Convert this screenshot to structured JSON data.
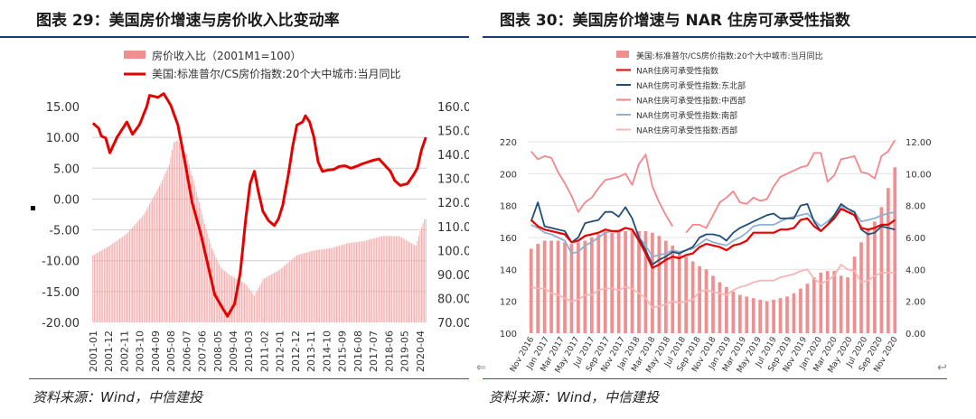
{
  "left": {
    "title": "图表 29：美国房价增速与房价收入比变动率",
    "source": "资料来源：Wind，中信建投",
    "chart_data": {
      "type": "bar+line",
      "legend": [
        {
          "name": "房价收入比（2001M1=100）",
          "color": "#f08f8f"
        },
        {
          "name": "美国:标准普尔/CS房价指数:20个大中城市:当月同比",
          "color": "#e60000"
        }
      ],
      "left_ticks": [
        "15.00",
        "10.00",
        "5.00",
        "0.00",
        "-5.00",
        "-10.00",
        "-15.00",
        "-20.00"
      ],
      "right_ticks": [
        "160.00",
        "150.00",
        "140.00",
        "130.00",
        "120.00",
        "110.00",
        "100.00",
        "90.00",
        "80.00",
        "70.00"
      ],
      "x_ticks": [
        "2001-01",
        "2001-12",
        "2002-11",
        "2003-10",
        "2004-09",
        "2005-08",
        "2006-07",
        "2007-06",
        "2008-05",
        "2009-04",
        "2010-03",
        "2011-02",
        "2012-01",
        "2012-12",
        "2013-11",
        "2014-10",
        "2015-09",
        "2016-08",
        "2017-07",
        "2018-06",
        "2019-05",
        "2020-04"
      ],
      "ylim_left": [
        -20,
        15
      ],
      "ylim_right": [
        70,
        160
      ],
      "ratio_anchors": [
        [
          0,
          98
        ],
        [
          12,
          102
        ],
        [
          24,
          107
        ],
        [
          36,
          115
        ],
        [
          48,
          128
        ],
        [
          54,
          136
        ],
        [
          57,
          145
        ],
        [
          60,
          146
        ],
        [
          66,
          140
        ],
        [
          72,
          127
        ],
        [
          78,
          113
        ],
        [
          84,
          101
        ],
        [
          90,
          93
        ],
        [
          96,
          90
        ],
        [
          108,
          86
        ],
        [
          114,
          81
        ],
        [
          120,
          88
        ],
        [
          132,
          92
        ],
        [
          144,
          98
        ],
        [
          156,
          100
        ],
        [
          168,
          101
        ],
        [
          180,
          103
        ],
        [
          192,
          104
        ],
        [
          204,
          106
        ],
        [
          216,
          106
        ],
        [
          222,
          104
        ],
        [
          228,
          102
        ],
        [
          231,
          108
        ],
        [
          234,
          113
        ]
      ],
      "yoy_anchors": [
        [
          0,
          12.3
        ],
        [
          4,
          11.5
        ],
        [
          6,
          10.2
        ],
        [
          9,
          9.9
        ],
        [
          12,
          7.5
        ],
        [
          17,
          10.0
        ],
        [
          24,
          12.5
        ],
        [
          28,
          10.5
        ],
        [
          33,
          12.1
        ],
        [
          38,
          15.0
        ],
        [
          40,
          16.8
        ],
        [
          46,
          16.5
        ],
        [
          50,
          17.1
        ],
        [
          55,
          15.2
        ],
        [
          60,
          12.0
        ],
        [
          65,
          6.0
        ],
        [
          70,
          -0.5
        ],
        [
          76,
          -5.5
        ],
        [
          81,
          -10.5
        ],
        [
          86,
          -15.5
        ],
        [
          91,
          -17.5
        ],
        [
          95,
          -19.0
        ],
        [
          100,
          -17.0
        ],
        [
          104,
          -12.0
        ],
        [
          108,
          -3.0
        ],
        [
          111,
          2.5
        ],
        [
          114,
          4.5
        ],
        [
          117,
          1.0
        ],
        [
          120,
          -2.0
        ],
        [
          124,
          -3.5
        ],
        [
          128,
          -4.3
        ],
        [
          131,
          -3.2
        ],
        [
          134,
          -1.0
        ],
        [
          138,
          4.0
        ],
        [
          141,
          8.5
        ],
        [
          144,
          12.0
        ],
        [
          148,
          12.5
        ],
        [
          150,
          13.5
        ],
        [
          153,
          12.5
        ],
        [
          156,
          10.0
        ],
        [
          159,
          6.0
        ],
        [
          162,
          4.5
        ],
        [
          166,
          4.7
        ],
        [
          170,
          4.8
        ],
        [
          174,
          5.3
        ],
        [
          178,
          5.4
        ],
        [
          182,
          5.0
        ],
        [
          186,
          5.3
        ],
        [
          190,
          5.7
        ],
        [
          194,
          6.0
        ],
        [
          198,
          6.3
        ],
        [
          202,
          6.5
        ],
        [
          206,
          5.5
        ],
        [
          210,
          4.5
        ],
        [
          213,
          3.0
        ],
        [
          217,
          2.2
        ],
        [
          222,
          2.5
        ],
        [
          226,
          3.8
        ],
        [
          229,
          5.0
        ],
        [
          232,
          8.0
        ],
        [
          235,
          10.0
        ]
      ]
    }
  },
  "right": {
    "title": "图表 30：美国房价增速与 NAR 住房可承受性指数",
    "source": "资料来源：Wind，中信建投",
    "chart_data": {
      "type": "bar+line",
      "legend": [
        {
          "name": "美国:标准普尔/CS房价指数:20个大中城市:当月同比",
          "color": "#f08f8f",
          "kind": "bar"
        },
        {
          "name": "NAR住房可承受性指数",
          "color": "#e60000",
          "kind": "line"
        },
        {
          "name": "NAR住房可承受性指数:东北部",
          "color": "#1f4e79",
          "kind": "line"
        },
        {
          "name": "NAR住房可承受性指数:中西部",
          "color": "#f4878a",
          "kind": "line"
        },
        {
          "name": "NAR住房可承受性指数:南部",
          "color": "#8fb0d0",
          "kind": "line"
        },
        {
          "name": "NAR住房可承受性指数:西部",
          "color": "#f7b6b6",
          "kind": "line"
        }
      ],
      "left_ticks": [
        "220",
        "200",
        "180",
        "160",
        "140",
        "120",
        "100"
      ],
      "right_ticks": [
        "12.00",
        "10.00",
        "8.00",
        "6.00",
        "4.00",
        "2.00",
        "0.00"
      ],
      "ylim_left": [
        100,
        220
      ],
      "ylim_right": [
        0,
        12
      ],
      "x_ticks": [
        "Nov 2016",
        "Jan 2017",
        "Mar 2017",
        "May 2017",
        "Jul 2017",
        "Sep 2017",
        "Nov 2017",
        "Jan 2018",
        "Mar 2018",
        "May 2018",
        "Jul 2018",
        "Sep 2018",
        "Nov 2018",
        "Jan 2019",
        "Mar 2019",
        "May 2019",
        "Jul 2019",
        "Sep 2019",
        "Nov 2019",
        "Jan 2020",
        "Mar 2020",
        "May 2020",
        "Jul 2020",
        "Sep 2020",
        "Nov 2020"
      ],
      "bars": [
        5.3,
        5.6,
        5.8,
        5.8,
        5.8,
        5.7,
        5.6,
        5.7,
        5.8,
        6.0,
        6.2,
        6.4,
        6.3,
        6.3,
        6.4,
        6.4,
        6.4,
        6.4,
        6.3,
        6.1,
        5.8,
        5.5,
        5.1,
        4.8,
        4.5,
        4.2,
        4.0,
        3.6,
        3.2,
        2.9,
        2.6,
        2.4,
        2.3,
        2.2,
        2.1,
        2.0,
        2.1,
        2.2,
        2.3,
        2.5,
        2.8,
        3.1,
        3.5,
        3.8,
        3.9,
        3.9,
        3.6,
        3.5,
        4.8,
        5.7,
        6.5,
        7.0,
        7.9,
        9.1,
        10.4
      ],
      "nar": [
        171,
        167,
        165,
        164,
        163,
        162,
        157,
        158,
        161,
        162,
        163,
        165,
        164,
        164,
        166,
        165,
        158,
        150,
        141,
        143,
        146,
        148,
        147,
        149,
        150,
        154,
        156,
        155,
        154,
        152,
        155,
        156,
        158,
        163,
        163,
        163,
        163,
        165,
        165,
        166,
        171,
        172,
        167,
        164,
        168,
        172,
        178,
        176,
        174,
        166,
        165,
        166,
        168,
        168,
        171
      ],
      "northeast": [
        170,
        182,
        167,
        166,
        165,
        164,
        157,
        160,
        169,
        170,
        171,
        176,
        176,
        173,
        179,
        172,
        160,
        152,
        143,
        146,
        148,
        151,
        150,
        152,
        154,
        160,
        162,
        162,
        161,
        158,
        163,
        166,
        168,
        170,
        172,
        174,
        175,
        172,
        172,
        172,
        180,
        181,
        170,
        164,
        168,
        174,
        181,
        178,
        176,
        165,
        162,
        163,
        167,
        166,
        165
      ],
      "midwest": [
        214,
        209,
        211,
        210,
        201,
        194,
        186,
        176,
        182,
        185,
        191,
        196,
        197,
        198,
        200,
        193,
        206,
        212,
        192,
        182,
        174,
        167,
        null,
        163,
        168,
        168,
        166,
        174,
        182,
        185,
        189,
        182,
        181,
        185,
        183,
        184,
        192,
        198,
        200,
        202,
        204,
        205,
        213,
        213,
        195,
        199,
        209,
        210,
        211,
        201,
        200,
        197,
        211,
        214,
        221
      ],
      "south": [
        168,
        166,
        163,
        162,
        160,
        158,
        150,
        151,
        155,
        157,
        160,
        163,
        164,
        163,
        166,
        165,
        160,
        155,
        148,
        149,
        150,
        152,
        151,
        152,
        153,
        156,
        159,
        157,
        156,
        155,
        158,
        160,
        163,
        167,
        168,
        168,
        168,
        170,
        172,
        173,
        174,
        175,
        171,
        167,
        170,
        174,
        180,
        176,
        176,
        170,
        171,
        172,
        174,
        175,
        176
      ],
      "west": [
        129,
        128,
        128,
        125,
        124,
        122,
        120,
        121,
        124,
        124,
        127,
        128,
        128,
        127,
        129,
        128,
        125,
        122,
        116,
        117,
        118,
        120,
        119,
        120,
        121,
        126,
        127,
        126,
        125,
        124,
        127,
        129,
        130,
        132,
        133,
        133,
        133,
        135,
        136,
        137,
        139,
        140,
        134,
        131,
        133,
        136,
        143,
        140,
        139,
        132,
        133,
        136,
        138,
        138,
        138
      ]
    }
  }
}
